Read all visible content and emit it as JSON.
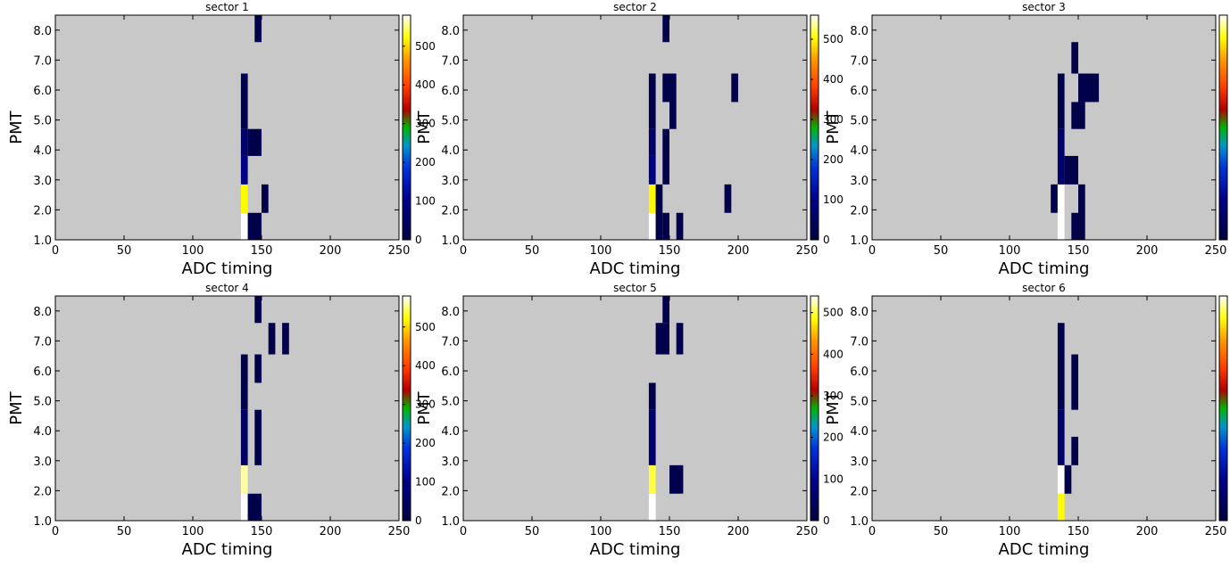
{
  "chart_data": [
    {
      "type": "heatmap",
      "title": "sector 1",
      "xlabel": "ADC timing",
      "ylabel": "PMT",
      "xlim": [
        0,
        250
      ],
      "ylim": [
        1,
        8.5
      ],
      "x_ticks": [
        "0",
        "50",
        "100",
        "150",
        "200",
        "250"
      ],
      "y_ticks": [
        "1.0",
        "2.0",
        "3.0",
        "4.0",
        "5.0",
        "6.0",
        "7.0",
        "8.0"
      ],
      "colorbar": {
        "min": 0,
        "max": 580,
        "ticks": [
          "0",
          "100",
          "200",
          "300",
          "400",
          "500"
        ]
      },
      "background_color": "#c8c8c8",
      "cells": [
        {
          "x0": 135,
          "x1": 140,
          "y0": 1.0,
          "y1": 1.9,
          "value": 580
        },
        {
          "x0": 135,
          "x1": 140,
          "y0": 1.9,
          "y1": 2.85,
          "value": 520
        },
        {
          "x0": 135,
          "x1": 140,
          "y0": 2.85,
          "y1": 3.8,
          "value": 95
        },
        {
          "x0": 135,
          "x1": 140,
          "y0": 3.8,
          "y1": 4.7,
          "value": 60
        },
        {
          "x0": 135,
          "x1": 140,
          "y0": 4.7,
          "y1": 6.55,
          "value": 15
        },
        {
          "x0": 140,
          "x1": 150,
          "y0": 1.0,
          "y1": 1.9,
          "value": 15
        },
        {
          "x0": 140,
          "x1": 150,
          "y0": 3.8,
          "y1": 4.7,
          "value": 15
        },
        {
          "x0": 150,
          "x1": 155,
          "y0": 1.9,
          "y1": 2.85,
          "value": 15
        },
        {
          "x0": 145,
          "x1": 150,
          "y0": 7.6,
          "y1": 8.5,
          "value": 15
        }
      ]
    },
    {
      "type": "heatmap",
      "title": "sector 2",
      "xlabel": "ADC timing",
      "ylabel": "PMT",
      "xlim": [
        0,
        250
      ],
      "ylim": [
        1,
        8.5
      ],
      "x_ticks": [
        "0",
        "50",
        "100",
        "150",
        "200",
        "250"
      ],
      "y_ticks": [
        "1.0",
        "2.0",
        "3.0",
        "4.0",
        "5.0",
        "6.0",
        "7.0",
        "8.0"
      ],
      "colorbar": {
        "min": 0,
        "max": 560,
        "ticks": [
          "0",
          "100",
          "200",
          "300",
          "400",
          "500"
        ]
      },
      "background_color": "#c8c8c8",
      "cells": [
        {
          "x0": 135,
          "x1": 140,
          "y0": 1.0,
          "y1": 1.9,
          "value": 560
        },
        {
          "x0": 135,
          "x1": 140,
          "y0": 1.9,
          "y1": 2.85,
          "value": 500
        },
        {
          "x0": 135,
          "x1": 140,
          "y0": 2.85,
          "y1": 3.8,
          "value": 90
        },
        {
          "x0": 135,
          "x1": 140,
          "y0": 3.8,
          "y1": 4.7,
          "value": 50
        },
        {
          "x0": 135,
          "x1": 140,
          "y0": 4.7,
          "y1": 6.55,
          "value": 15
        },
        {
          "x0": 140,
          "x1": 145,
          "y0": 1.0,
          "y1": 2.85,
          "value": 15
        },
        {
          "x0": 145,
          "x1": 150,
          "y0": 1.0,
          "y1": 1.9,
          "value": 15
        },
        {
          "x0": 145,
          "x1": 150,
          "y0": 2.85,
          "y1": 4.7,
          "value": 15
        },
        {
          "x0": 145,
          "x1": 150,
          "y0": 5.6,
          "y1": 6.55,
          "value": 15
        },
        {
          "x0": 145,
          "x1": 150,
          "y0": 7.6,
          "y1": 8.5,
          "value": 15
        },
        {
          "x0": 150,
          "x1": 155,
          "y0": 4.7,
          "y1": 6.55,
          "value": 15
        },
        {
          "x0": 155,
          "x1": 160,
          "y0": 1.0,
          "y1": 1.9,
          "value": 15
        },
        {
          "x0": 190,
          "x1": 195,
          "y0": 1.9,
          "y1": 2.85,
          "value": 15
        },
        {
          "x0": 195,
          "x1": 200,
          "y0": 5.6,
          "y1": 6.55,
          "value": 15
        }
      ]
    },
    {
      "type": "heatmap",
      "title": "sector 3",
      "xlabel": "ADC timing",
      "ylabel": "PMT",
      "xlim": [
        0,
        250
      ],
      "ylim": [
        1,
        8.5
      ],
      "x_ticks": [
        "0",
        "50",
        "100",
        "150",
        "200",
        "250"
      ],
      "y_ticks": [
        "1.0",
        "2.0",
        "3.0",
        "4.0",
        "5.0",
        "6.0",
        "7.0",
        "8.0"
      ],
      "colorbar": {
        "min": 0,
        "max": 580,
        "ticks": []
      },
      "background_color": "#c8c8c8",
      "cells": [
        {
          "x0": 130,
          "x1": 135,
          "y0": 1.9,
          "y1": 2.85,
          "value": 15
        },
        {
          "x0": 135,
          "x1": 140,
          "y0": 1.0,
          "y1": 2.85,
          "value": 580
        },
        {
          "x0": 135,
          "x1": 140,
          "y0": 2.85,
          "y1": 4.7,
          "value": 60
        },
        {
          "x0": 135,
          "x1": 140,
          "y0": 4.7,
          "y1": 6.55,
          "value": 15
        },
        {
          "x0": 140,
          "x1": 150,
          "y0": 2.85,
          "y1": 3.8,
          "value": 15
        },
        {
          "x0": 145,
          "x1": 150,
          "y0": 1.0,
          "y1": 1.9,
          "value": 15
        },
        {
          "x0": 145,
          "x1": 150,
          "y0": 4.7,
          "y1": 5.6,
          "value": 15
        },
        {
          "x0": 145,
          "x1": 150,
          "y0": 6.55,
          "y1": 7.6,
          "value": 15
        },
        {
          "x0": 150,
          "x1": 155,
          "y0": 1.0,
          "y1": 2.85,
          "value": 15
        },
        {
          "x0": 150,
          "x1": 155,
          "y0": 4.7,
          "y1": 5.6,
          "value": 15
        },
        {
          "x0": 150,
          "x1": 165,
          "y0": 5.6,
          "y1": 6.55,
          "value": 15
        }
      ]
    },
    {
      "type": "heatmap",
      "title": "sector 4",
      "xlabel": "ADC timing",
      "ylabel": "PMT",
      "xlim": [
        0,
        250
      ],
      "ylim": [
        1,
        8.5
      ],
      "x_ticks": [
        "0",
        "50",
        "100",
        "150",
        "200",
        "250"
      ],
      "y_ticks": [
        "1.0",
        "2.0",
        "3.0",
        "4.0",
        "5.0",
        "6.0",
        "7.0",
        "8.0"
      ],
      "colorbar": {
        "min": 0,
        "max": 580,
        "ticks": [
          "0",
          "100",
          "200",
          "300",
          "400",
          "500"
        ]
      },
      "background_color": "#c8c8c8",
      "cells": [
        {
          "x0": 135,
          "x1": 140,
          "y0": 1.0,
          "y1": 1.9,
          "value": 580
        },
        {
          "x0": 135,
          "x1": 140,
          "y0": 1.9,
          "y1": 2.85,
          "value": 560
        },
        {
          "x0": 135,
          "x1": 140,
          "y0": 2.85,
          "y1": 4.7,
          "value": 50
        },
        {
          "x0": 135,
          "x1": 140,
          "y0": 4.7,
          "y1": 6.55,
          "value": 15
        },
        {
          "x0": 140,
          "x1": 150,
          "y0": 1.0,
          "y1": 1.9,
          "value": 15
        },
        {
          "x0": 145,
          "x1": 150,
          "y0": 2.85,
          "y1": 4.7,
          "value": 15
        },
        {
          "x0": 145,
          "x1": 150,
          "y0": 5.6,
          "y1": 6.55,
          "value": 15
        },
        {
          "x0": 145,
          "x1": 150,
          "y0": 7.6,
          "y1": 8.5,
          "value": 15
        },
        {
          "x0": 155,
          "x1": 160,
          "y0": 6.55,
          "y1": 7.6,
          "value": 15
        },
        {
          "x0": 165,
          "x1": 170,
          "y0": 6.55,
          "y1": 7.6,
          "value": 15
        }
      ]
    },
    {
      "type": "heatmap",
      "title": "sector 5",
      "xlabel": "ADC timing",
      "ylabel": "PMT",
      "xlim": [
        0,
        250
      ],
      "ylim": [
        1,
        8.5
      ],
      "x_ticks": [
        "0",
        "50",
        "100",
        "150",
        "200",
        "250"
      ],
      "y_ticks": [
        "1.0",
        "2.0",
        "3.0",
        "4.0",
        "5.0",
        "6.0",
        "7.0",
        "8.0"
      ],
      "colorbar": {
        "min": 0,
        "max": 540,
        "ticks": [
          "0",
          "100",
          "200",
          "300",
          "400",
          "500"
        ]
      },
      "background_color": "#c8c8c8",
      "cells": [
        {
          "x0": 135,
          "x1": 140,
          "y0": 1.0,
          "y1": 1.9,
          "value": 540
        },
        {
          "x0": 135,
          "x1": 140,
          "y0": 1.9,
          "y1": 2.85,
          "value": 500
        },
        {
          "x0": 135,
          "x1": 140,
          "y0": 2.85,
          "y1": 4.7,
          "value": 60
        },
        {
          "x0": 135,
          "x1": 140,
          "y0": 4.7,
          "y1": 5.6,
          "value": 15
        },
        {
          "x0": 140,
          "x1": 150,
          "y0": 6.55,
          "y1": 7.6,
          "value": 15
        },
        {
          "x0": 145,
          "x1": 150,
          "y0": 7.6,
          "y1": 8.5,
          "value": 15
        },
        {
          "x0": 150,
          "x1": 160,
          "y0": 1.9,
          "y1": 2.85,
          "value": 15
        },
        {
          "x0": 155,
          "x1": 160,
          "y0": 6.55,
          "y1": 7.6,
          "value": 15
        }
      ]
    },
    {
      "type": "heatmap",
      "title": "sector 6",
      "xlabel": "ADC timing",
      "ylabel": "PMT",
      "xlim": [
        0,
        250
      ],
      "ylim": [
        1,
        8.5
      ],
      "x_ticks": [
        "0",
        "50",
        "100",
        "150",
        "200",
        "250"
      ],
      "y_ticks": [
        "1.0",
        "2.0",
        "3.0",
        "4.0",
        "5.0",
        "6.0",
        "7.0",
        "8.0"
      ],
      "colorbar": {
        "min": 0,
        "max": 580,
        "ticks": []
      },
      "background_color": "#c8c8c8",
      "cells": [
        {
          "x0": 135,
          "x1": 140,
          "y0": 1.0,
          "y1": 1.9,
          "value": 520
        },
        {
          "x0": 135,
          "x1": 140,
          "y0": 1.9,
          "y1": 2.85,
          "value": 580
        },
        {
          "x0": 135,
          "x1": 140,
          "y0": 2.85,
          "y1": 4.7,
          "value": 60
        },
        {
          "x0": 135,
          "x1": 140,
          "y0": 4.7,
          "y1": 7.6,
          "value": 15
        },
        {
          "x0": 140,
          "x1": 145,
          "y0": 1.9,
          "y1": 2.85,
          "value": 15
        },
        {
          "x0": 145,
          "x1": 150,
          "y0": 2.85,
          "y1": 3.8,
          "value": 15
        },
        {
          "x0": 145,
          "x1": 150,
          "y0": 4.7,
          "y1": 6.55,
          "value": 15
        }
      ]
    }
  ]
}
